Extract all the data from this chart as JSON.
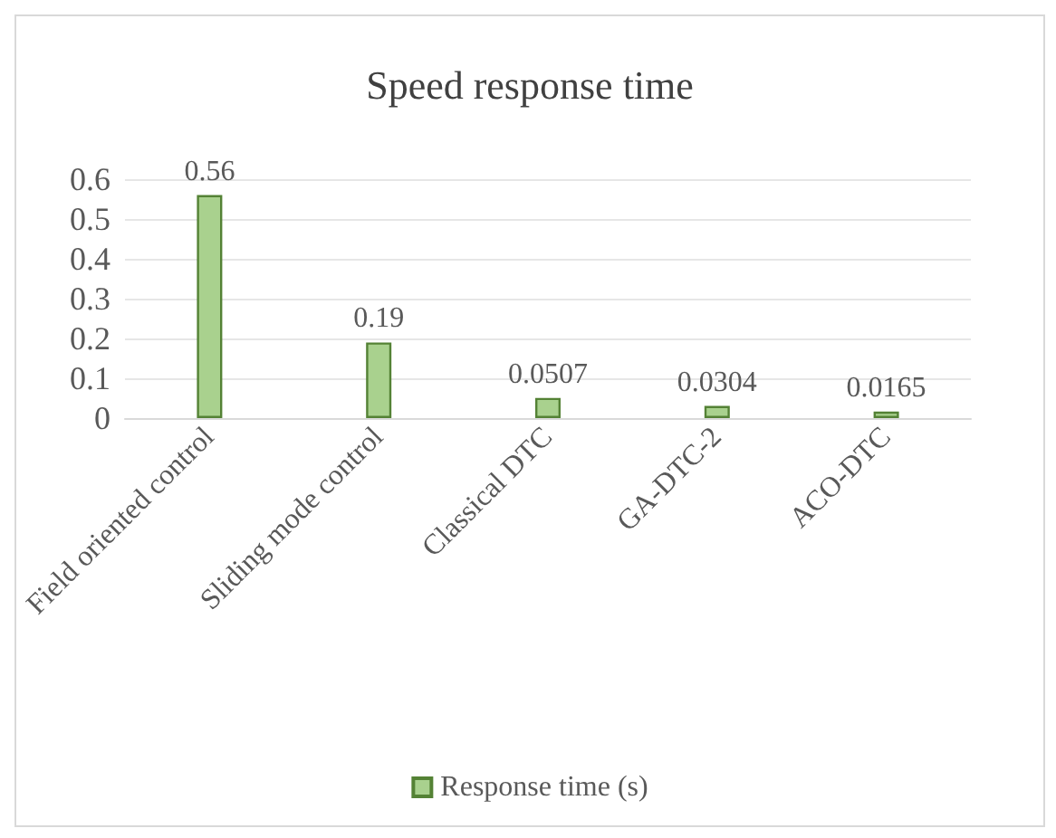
{
  "chart_data": {
    "type": "bar",
    "title": "Speed response time",
    "categories": [
      "Field oriented control",
      "Sliding mode control",
      "Classical DTC",
      "GA-DTC-2",
      "ACO-DTC"
    ],
    "series": [
      {
        "name": "Response time (s)",
        "color": "#a9d18e",
        "values": [
          0.56,
          0.19,
          0.0507,
          0.0304,
          0.0165
        ]
      }
    ],
    "ylim": [
      0,
      0.6
    ],
    "yticks": [
      0,
      0.1,
      0.2,
      0.3,
      0.4,
      0.5,
      0.6
    ],
    "grid": "y",
    "legend": "bottom",
    "data_labels": true
  }
}
